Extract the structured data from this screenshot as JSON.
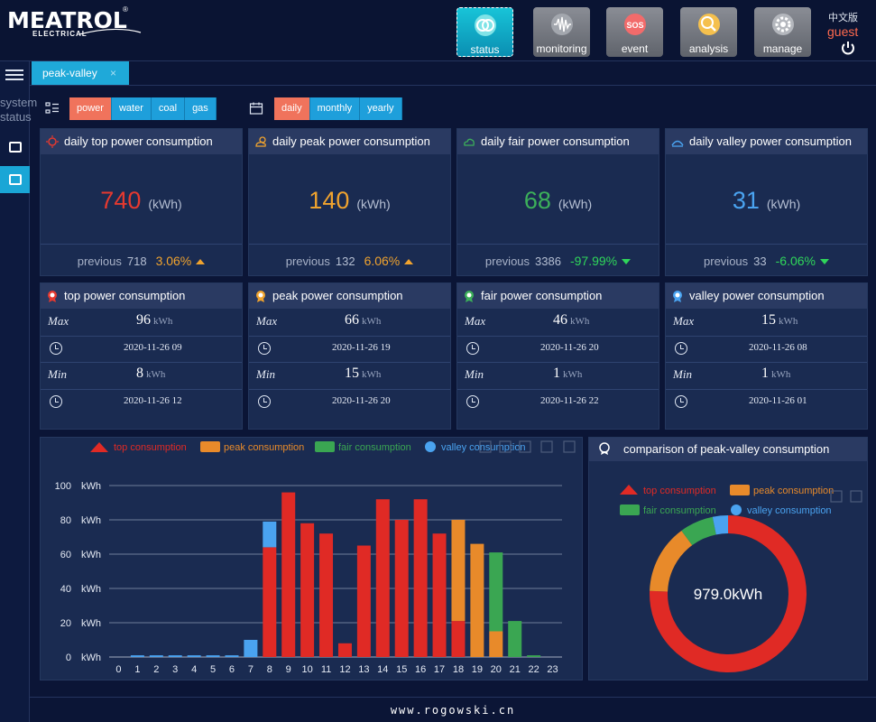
{
  "header": {
    "brand": "MEATROL",
    "brand_sub": "ELECTRICAL",
    "nav": [
      {
        "label": "status",
        "icon": "status-icon",
        "color": "#18c4d8"
      },
      {
        "label": "monitoring",
        "icon": "waveform-icon",
        "color": "#8a8d95"
      },
      {
        "label": "event",
        "icon": "sos-icon",
        "color": "#8a8d95"
      },
      {
        "label": "analysis",
        "icon": "magnifier-chart-icon",
        "color": "#8a8d95"
      },
      {
        "label": "manage",
        "icon": "gear-icon",
        "color": "#8a8d95"
      }
    ],
    "language": "中文版",
    "user": "guest"
  },
  "sidebar": {
    "label_line1": "system",
    "label_line2": "status"
  },
  "tab": {
    "label": "peak-valley",
    "close": "×"
  },
  "energy_filter": {
    "options": [
      "power",
      "water",
      "coal",
      "gas"
    ],
    "selected": "power"
  },
  "period_filter": {
    "options": [
      "daily",
      "monthly",
      "yearly"
    ],
    "selected": "daily"
  },
  "summary_cards": [
    {
      "title": "daily top power consumption",
      "value": "740",
      "unit": "(kWh)",
      "previous_label": "previous",
      "previous": "718",
      "change": "3.06%",
      "direction": "up",
      "value_color": "#e5392f",
      "change_color": "#f0a32e"
    },
    {
      "title": "daily peak power consumption",
      "value": "140",
      "unit": "(kWh)",
      "previous_label": "previous",
      "previous": "132",
      "change": "6.06%",
      "direction": "up",
      "value_color": "#f0a32e",
      "change_color": "#f0a32e"
    },
    {
      "title": "daily fair power consumption",
      "value": "68",
      "unit": "(kWh)",
      "previous_label": "previous",
      "previous": "3386",
      "change": "-97.99%",
      "direction": "down",
      "value_color": "#3cb05a",
      "change_color": "#2fd65a"
    },
    {
      "title": "daily valley power consumption",
      "value": "31",
      "unit": "(kWh)",
      "previous_label": "previous",
      "previous": "33",
      "change": "-6.06%",
      "direction": "down",
      "value_color": "#4aa3f0",
      "change_color": "#2fd65a"
    }
  ],
  "stat_cards": [
    {
      "title": "top power consumption",
      "max_label": "Max",
      "max": "96",
      "max_time": "2020-11-26 09",
      "min_label": "Min",
      "min": "8",
      "min_time": "2020-11-26 12",
      "unit": "kWh"
    },
    {
      "title": "peak power consumption",
      "max_label": "Max",
      "max": "66",
      "max_time": "2020-11-26 19",
      "min_label": "Min",
      "min": "15",
      "min_time": "2020-11-26 20",
      "unit": "kWh"
    },
    {
      "title": "fair power consumption",
      "max_label": "Max",
      "max": "46",
      "max_time": "2020-11-26 20",
      "min_label": "Min",
      "min": "1",
      "min_time": "2020-11-26 22",
      "unit": "kWh"
    },
    {
      "title": "valley power consumption",
      "max_label": "Max",
      "max": "15",
      "max_time": "2020-11-26 08",
      "min_label": "Min",
      "min": "1",
      "min_time": "2020-11-26 01",
      "unit": "kWh"
    }
  ],
  "colors": {
    "top": "#e02a25",
    "peak": "#e88a2a",
    "fair": "#3aa652",
    "valley": "#4aa3f0"
  },
  "chart_data": [
    {
      "type": "bar",
      "stacked": true,
      "legend": [
        "top consumption",
        "peak consumption",
        "fair consumption",
        "valley consumption"
      ],
      "categories": [
        "0",
        "1",
        "2",
        "3",
        "4",
        "5",
        "6",
        "7",
        "8",
        "9",
        "10",
        "11",
        "12",
        "13",
        "14",
        "15",
        "16",
        "17",
        "18",
        "19",
        "20",
        "21",
        "22",
        "23"
      ],
      "series": [
        {
          "name": "top consumption",
          "values": [
            0,
            0,
            0,
            0,
            0,
            0,
            0,
            0,
            64,
            96,
            78,
            72,
            8,
            65,
            92,
            80,
            92,
            72,
            21,
            0,
            0,
            0,
            0,
            0
          ]
        },
        {
          "name": "peak consumption",
          "values": [
            0,
            0,
            0,
            0,
            0,
            0,
            0,
            0,
            0,
            0,
            0,
            0,
            0,
            0,
            0,
            0,
            0,
            0,
            59,
            66,
            15,
            0,
            0,
            0
          ]
        },
        {
          "name": "fair consumption",
          "values": [
            0,
            0,
            0,
            0,
            0,
            0,
            0,
            0,
            0,
            0,
            0,
            0,
            0,
            0,
            0,
            0,
            0,
            0,
            0,
            0,
            46,
            21,
            1,
            0
          ]
        },
        {
          "name": "valley consumption",
          "values": [
            0,
            1,
            1,
            1,
            1,
            1,
            1,
            10,
            15,
            0,
            0,
            0,
            0,
            0,
            0,
            0,
            0,
            0,
            0,
            0,
            0,
            0,
            0,
            0
          ]
        }
      ],
      "yticks": [
        "100",
        "80",
        "60",
        "40",
        "20",
        "0"
      ],
      "yunit": "kWh",
      "ylim": [
        0,
        100
      ],
      "grid": true,
      "legend_position": "top"
    },
    {
      "type": "pie",
      "title": "comparison of peak-valley consumption",
      "center_label": "979.0kWh",
      "slices": [
        {
          "name": "top consumption",
          "value": 740
        },
        {
          "name": "peak consumption",
          "value": 140
        },
        {
          "name": "fair consumption",
          "value": 68
        },
        {
          "name": "valley consumption",
          "value": 31
        }
      ],
      "legend_position": "top"
    }
  ],
  "footer": "www.rogowski.cn"
}
